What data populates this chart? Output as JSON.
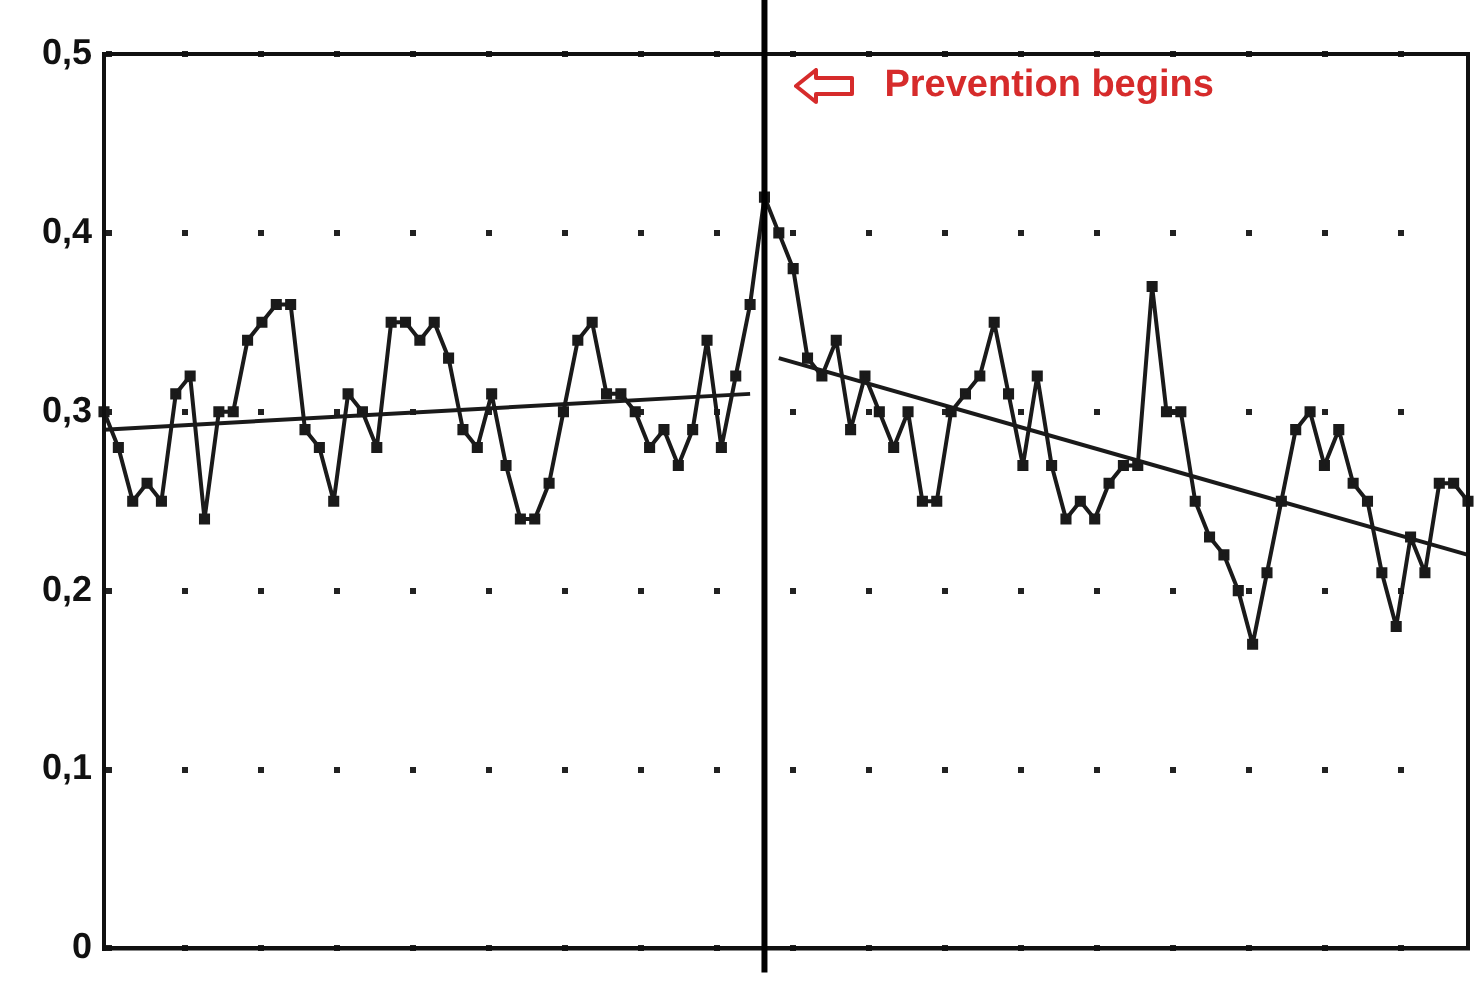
{
  "chart_data": {
    "type": "line",
    "ylim": [
      0,
      0.5
    ],
    "categories": [
      null,
      null,
      null,
      null,
      null,
      null,
      null,
      null,
      null,
      null,
      null,
      null,
      null,
      null,
      null,
      null,
      null,
      null,
      null,
      null,
      null,
      null,
      null,
      null,
      null,
      null,
      null,
      null,
      null,
      null,
      null,
      null,
      null,
      null,
      null,
      null,
      null,
      null,
      null,
      null,
      null,
      null,
      null,
      null,
      null,
      null,
      null,
      null,
      null,
      null,
      null,
      null,
      null,
      null,
      null,
      null,
      null,
      null,
      null,
      null,
      null,
      null,
      null,
      null,
      null,
      null,
      null,
      null,
      null,
      null,
      null,
      null,
      null,
      null,
      null,
      null,
      null,
      null,
      null,
      null,
      null,
      null,
      null,
      null,
      null,
      null,
      null,
      null,
      null,
      null,
      null,
      null,
      null,
      null,
      null,
      null
    ],
    "yticks": [
      {
        "value": 0,
        "label": "0"
      },
      {
        "value": 0.1,
        "label": "0,1"
      },
      {
        "value": 0.2,
        "label": "0,2"
      },
      {
        "value": 0.3,
        "label": "0,3"
      },
      {
        "value": 0.4,
        "label": "0,4"
      },
      {
        "value": 0.5,
        "label": "0,5"
      }
    ],
    "tick_labels": "y",
    "grid": "y",
    "marker": "square",
    "series": [
      {
        "color": "#1a1a1a",
        "values": [
          0.3,
          0.28,
          0.25,
          0.26,
          0.25,
          0.31,
          0.32,
          0.24,
          0.3,
          0.3,
          0.34,
          0.35,
          0.36,
          0.36,
          0.29,
          0.28,
          0.25,
          0.31,
          0.3,
          0.28,
          0.35,
          0.35,
          0.34,
          0.35,
          0.33,
          0.29,
          0.28,
          0.31,
          0.27,
          0.24,
          0.24,
          0.26,
          0.3,
          0.34,
          0.35,
          0.31,
          0.31,
          0.3,
          0.28,
          0.29,
          0.27,
          0.29,
          0.34,
          0.28,
          0.32,
          0.36,
          0.42,
          0.4,
          0.38,
          0.33,
          0.32,
          0.34,
          0.29,
          0.32,
          0.3,
          0.28,
          0.3,
          0.25,
          0.25,
          0.3,
          0.31,
          0.32,
          0.35,
          0.31,
          0.27,
          0.32,
          0.27,
          0.24,
          0.25,
          0.24,
          0.26,
          0.27,
          0.27,
          0.37,
          0.3,
          0.3,
          0.25,
          0.23,
          0.22,
          0.2,
          0.17,
          0.21,
          0.25,
          0.29,
          0.3,
          0.27,
          0.29,
          0.26,
          0.25,
          0.21,
          0.18,
          0.23,
          0.21,
          0.26,
          0.26,
          0.25
        ]
      },
      {
        "color": "#1a1a1a",
        "marker": "none",
        "values": [
          0.29,
          null,
          null,
          null,
          null,
          null,
          null,
          null,
          null,
          null,
          null,
          null,
          null,
          null,
          null,
          null,
          null,
          null,
          null,
          null,
          null,
          null,
          null,
          null,
          null,
          null,
          null,
          null,
          null,
          null,
          null,
          null,
          null,
          null,
          null,
          null,
          null,
          null,
          null,
          null,
          null,
          null,
          null,
          null,
          null,
          0.31,
          null,
          null,
          null,
          null,
          null,
          null,
          null,
          null,
          null,
          null,
          null,
          null,
          null,
          null,
          null,
          null,
          null,
          null,
          null,
          null,
          null,
          null,
          null,
          null,
          null,
          null,
          null,
          null,
          null,
          null,
          null,
          null,
          null,
          null,
          null,
          null,
          null,
          null,
          null,
          null,
          null,
          null,
          null,
          null,
          null,
          null,
          null,
          null,
          null,
          null
        ]
      },
      {
        "color": "#1a1a1a",
        "marker": "none",
        "values": [
          null,
          null,
          null,
          null,
          null,
          null,
          null,
          null,
          null,
          null,
          null,
          null,
          null,
          null,
          null,
          null,
          null,
          null,
          null,
          null,
          null,
          null,
          null,
          null,
          null,
          null,
          null,
          null,
          null,
          null,
          null,
          null,
          null,
          null,
          null,
          null,
          null,
          null,
          null,
          null,
          null,
          null,
          null,
          null,
          null,
          null,
          null,
          0.33,
          null,
          null,
          null,
          null,
          null,
          null,
          null,
          null,
          null,
          null,
          null,
          null,
          null,
          null,
          null,
          null,
          null,
          null,
          null,
          null,
          null,
          null,
          null,
          null,
          null,
          null,
          null,
          null,
          null,
          null,
          null,
          null,
          null,
          null,
          null,
          null,
          null,
          null,
          null,
          null,
          null,
          null,
          null,
          null,
          null,
          null,
          null,
          0.22
        ]
      }
    ],
    "annotations": [
      "Prevention begins"
    ]
  }
}
